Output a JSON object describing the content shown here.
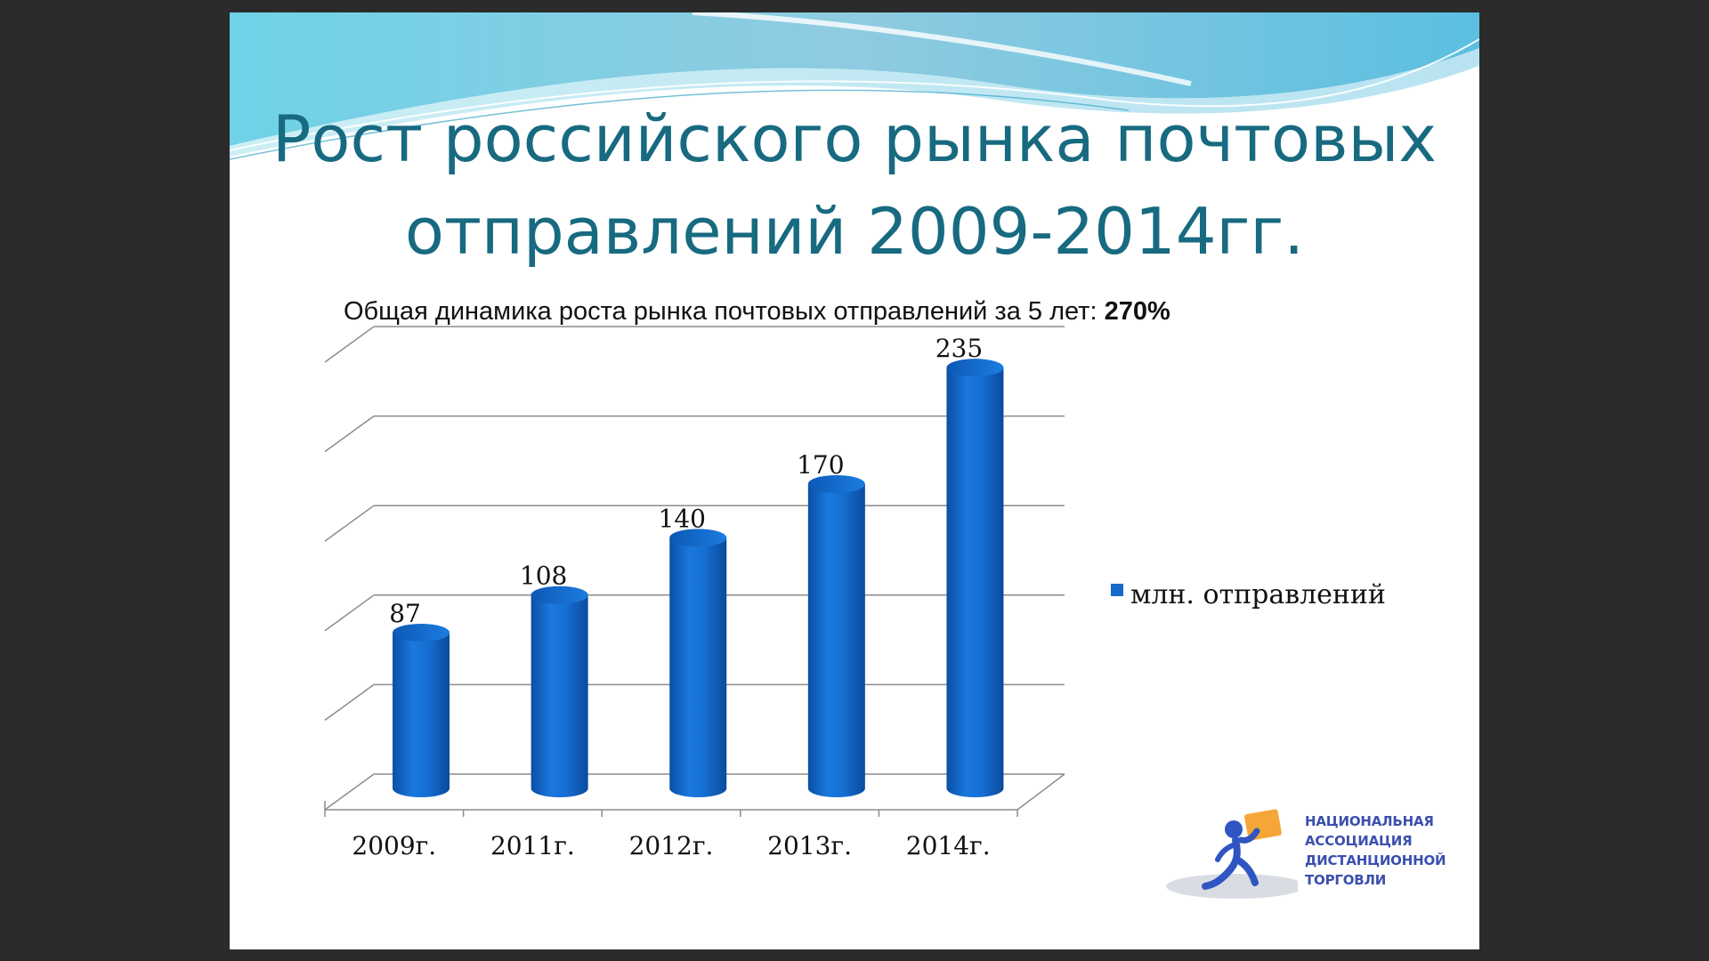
{
  "title_line1": "Рост российского рынка почтовых",
  "title_line2": "отправлений 2009-2014гг.",
  "subtitle_text": "Общая динамика роста рынка почтовых отправлений за 5 лет: ",
  "subtitle_value": "270%",
  "colors": {
    "title": "#176a80",
    "bar": "#1668c9",
    "org": "#3b4fae",
    "slide_bg": "#ffffff",
    "frame_bg": "#2b2b2b"
  },
  "chart_data": {
    "type": "bar",
    "style": "3d-cylinder",
    "categories": [
      "2009г.",
      "2011г.",
      "2012г.",
      "2013г.",
      "2014г."
    ],
    "series": [
      {
        "name": "млн. отправлений",
        "values": [
          87,
          108,
          140,
          170,
          235
        ]
      }
    ],
    "ylim": [
      0,
      250
    ],
    "grid": true,
    "legend": "right"
  },
  "logo": {
    "lines": [
      "НАЦИОНАЛЬНАЯ",
      "АССОЦИАЦИЯ",
      "ДИСТАНЦИОННОЙ",
      "ТОРГОВЛИ"
    ],
    "icon": "person-carrying-box-icon"
  }
}
